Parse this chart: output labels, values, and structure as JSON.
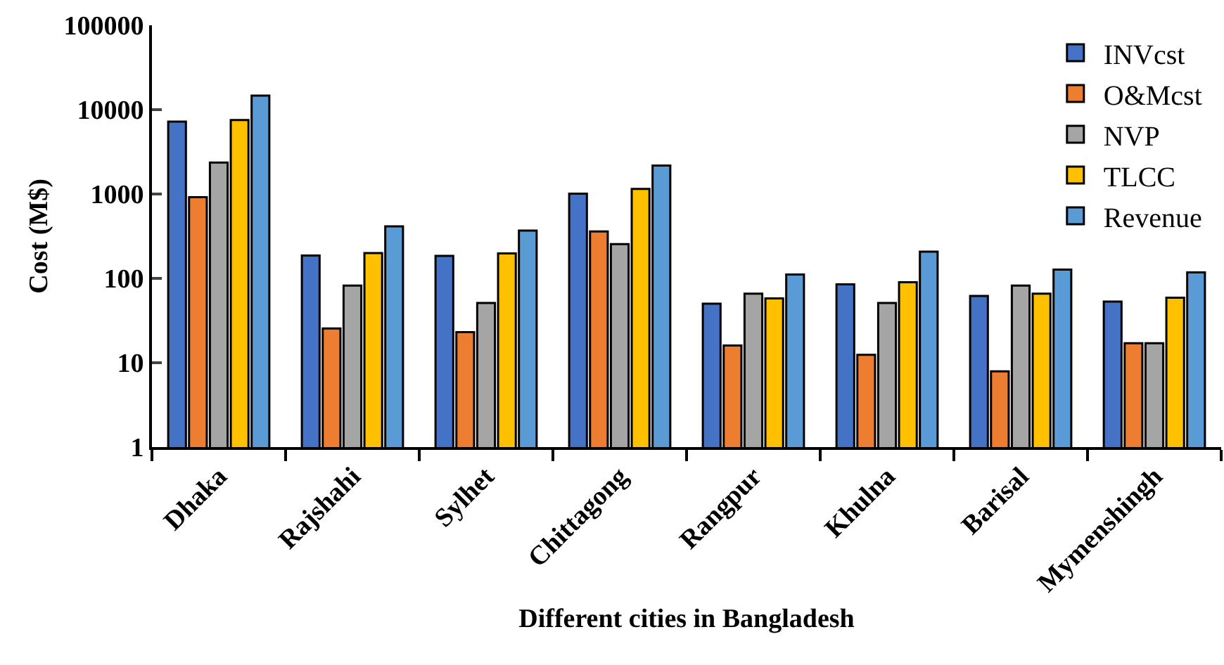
{
  "chart_data": {
    "type": "bar",
    "xlabel": "Different cities in Bangladesh",
    "ylabel": "Cost (M$)",
    "categories": [
      "Dhaka",
      "Rajshahi",
      "Sylhet",
      "Chittagong",
      "Rangpur",
      "Khulna",
      "Barisal",
      "Mymenshingh"
    ],
    "series": [
      {
        "name": "INVcst",
        "color": "#4472c4",
        "values": [
          7200,
          187,
          185,
          1010,
          50,
          85,
          62,
          53
        ]
      },
      {
        "name": "O&Mcst",
        "color": "#ed7d31",
        "values": [
          915,
          25.5,
          23,
          360,
          16,
          12.4,
          7.9,
          17
        ]
      },
      {
        "name": "NVP",
        "color": "#a5a5a5",
        "values": [
          2360,
          82,
          51,
          255,
          66,
          51,
          82,
          17
        ]
      },
      {
        "name": "TLCC",
        "color": "#ffc000",
        "values": [
          7550,
          200,
          198,
          1150,
          58,
          90,
          66,
          59
        ]
      },
      {
        "name": "Revenue",
        "color": "#5b9bd5",
        "values": [
          14700,
          414,
          369,
          2180,
          111,
          207,
          127,
          118
        ]
      }
    ],
    "log": "y",
    "ylim": [
      1,
      100000
    ],
    "yticks": [
      1,
      10,
      100,
      1000,
      10000,
      100000
    ],
    "grid": false,
    "legend": "top right"
  }
}
